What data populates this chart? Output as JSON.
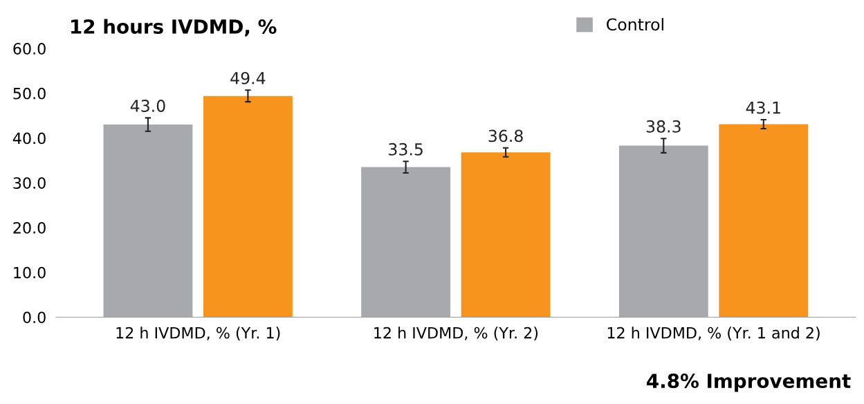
{
  "chart_data": {
    "type": "bar",
    "title": "12 hours IVDMD, %",
    "categories": [
      "12 h IVDMD, % (Yr. 1)",
      "12 h IVDMD, % (Yr. 2)",
      "12 h IVDMD, % (Yr. 1 and 2)"
    ],
    "series": [
      {
        "name": "Control",
        "color": "#a7a9ac",
        "values": [
          43.0,
          33.5,
          38.3
        ],
        "errors": [
          1.5,
          1.3,
          1.6
        ],
        "value_labels": [
          "43.0",
          "33.5",
          "38.3"
        ]
      },
      {
        "color": "#f7941d",
        "values": [
          49.4,
          36.8,
          43.1
        ],
        "errors": [
          1.3,
          1.0,
          1.0
        ],
        "value_labels": [
          "49.4",
          "36.8",
          "43.1"
        ]
      }
    ],
    "ylim": [
      0,
      60
    ],
    "yticks": [
      {
        "value": 0,
        "label": "0.0"
      },
      {
        "value": 10,
        "label": "10.0"
      },
      {
        "value": 20,
        "label": "20.0"
      },
      {
        "value": 30,
        "label": "30.0"
      },
      {
        "value": 40,
        "label": "40.0"
      },
      {
        "value": 50,
        "label": "50.0"
      },
      {
        "value": 60,
        "label": "60.0"
      }
    ],
    "legend": "top right",
    "annotations": [
      "4.8% Improvement"
    ]
  }
}
